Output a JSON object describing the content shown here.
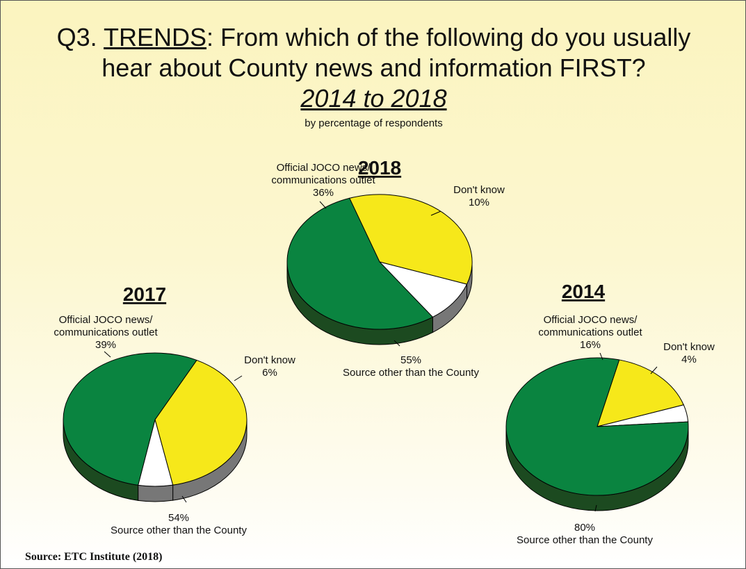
{
  "title": {
    "prefix": "Q3. ",
    "keyword": "TRENDS",
    "rest": ":  From which of the following do you usually",
    "line2": "hear about County news and information FIRST?",
    "years": "2014 to 2018",
    "note": "by percentage of respondents"
  },
  "source": "Source:  ETC Institute (2018)",
  "colors": {
    "official": "#f6e81a",
    "other": "#0a8440",
    "other_side": "#1c4a20",
    "dontknow": "#ffffff"
  },
  "chart_data": [
    {
      "type": "pie",
      "title": "2018",
      "slices": [
        {
          "label_lines": [
            "Official JOCO news/",
            "communications outlet"
          ],
          "value": 36,
          "value_label": "36%",
          "color": "#f6e81a"
        },
        {
          "label_lines": [
            "Don't know"
          ],
          "value": 10,
          "value_label": "10%",
          "color": "#ffffff"
        },
        {
          "label_lines": [
            "Source other than the County"
          ],
          "value": 55,
          "value_label": "55%",
          "color": "#0a8440"
        }
      ]
    },
    {
      "type": "pie",
      "title": "2017",
      "slices": [
        {
          "label_lines": [
            "Official JOCO news/",
            "communications outlet"
          ],
          "value": 39,
          "value_label": "39%",
          "color": "#f6e81a"
        },
        {
          "label_lines": [
            "Don't know"
          ],
          "value": 6,
          "value_label": "6%",
          "color": "#ffffff"
        },
        {
          "label_lines": [
            "Source other than the County"
          ],
          "value": 54,
          "value_label": "54%",
          "color": "#0a8440"
        }
      ]
    },
    {
      "type": "pie",
      "title": "2014",
      "slices": [
        {
          "label_lines": [
            "Official JOCO news/",
            "communications outlet"
          ],
          "value": 16,
          "value_label": "16%",
          "color": "#f6e81a"
        },
        {
          "label_lines": [
            "Don't know"
          ],
          "value": 4,
          "value_label": "4%",
          "color": "#ffffff"
        },
        {
          "label_lines": [
            "Source other than the County"
          ],
          "value": 80,
          "value_label": "80%",
          "color": "#0a8440"
        }
      ]
    }
  ]
}
